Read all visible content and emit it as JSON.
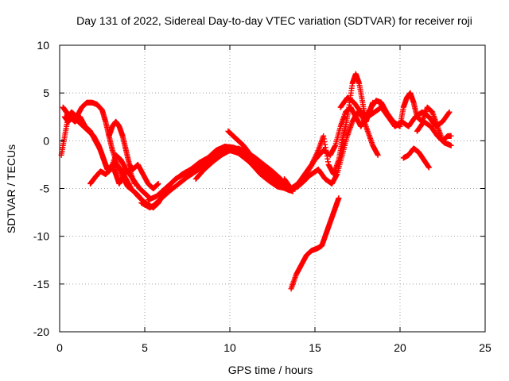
{
  "chart_data": {
    "type": "scatter",
    "title": "Day 131 of 2022, Sidereal Day-to-day VTEC variation (SDTVAR) for receiver roji",
    "xlabel": "GPS time / hours",
    "ylabel": "SDTVAR / TECUs",
    "xlim": [
      0,
      25
    ],
    "ylim": [
      -20,
      10
    ],
    "xticks": [
      0,
      5,
      10,
      15,
      20,
      25
    ],
    "yticks": [
      -20,
      -15,
      -10,
      -5,
      0,
      5,
      10
    ],
    "grid": true,
    "marker": "+",
    "color": "#ff0000",
    "series": [
      {
        "name": "arc1",
        "x": [
          0.1,
          0.3,
          0.5,
          0.7,
          1.0,
          1.3,
          1.6,
          1.9,
          2.2,
          2.5,
          2.7,
          2.9,
          3.1,
          3.4,
          3.7,
          4.0,
          4.5,
          5.0,
          5.5,
          5.8,
          6.1
        ],
        "y": [
          -1.5,
          0.5,
          2.5,
          3.0,
          2.5,
          3.5,
          4.0,
          4.0,
          3.8,
          3.2,
          2.0,
          0.5,
          -1.0,
          -2.5,
          -3.8,
          -4.8,
          -5.5,
          -6.5,
          -7.0,
          -6.5,
          -5.5
        ]
      },
      {
        "name": "arc2",
        "x": [
          0.2,
          0.4,
          0.6,
          0.9,
          1.2,
          1.5,
          1.8,
          2.1,
          2.4,
          2.6,
          2.8,
          3.0,
          3.3,
          3.6,
          3.9,
          4.2,
          4.6,
          5.0,
          5.3
        ],
        "y": [
          3.5,
          3.0,
          2.5,
          2.0,
          2.5,
          1.5,
          1.0,
          0.0,
          -1.0,
          -2.0,
          -3.0,
          -2.8,
          -2.5,
          -3.0,
          -4.0,
          -5.0,
          -5.8,
          -6.5,
          -6.8
        ]
      },
      {
        "name": "arc3",
        "x": [
          0.3,
          0.5,
          0.8,
          1.1,
          1.4,
          1.7,
          2.0,
          2.3,
          2.5,
          2.7,
          2.9,
          3.1,
          3.3,
          3.5,
          3.8,
          4.1,
          4.4
        ],
        "y": [
          2.5,
          2.0,
          2.5,
          2.0,
          1.5,
          1.0,
          0.5,
          -0.5,
          -1.5,
          -2.5,
          -3.2,
          -2.5,
          -3.5,
          -4.5,
          -3.5,
          -3.0,
          -4.5
        ]
      },
      {
        "name": "arc4",
        "x": [
          1.8,
          2.1,
          2.4,
          2.7,
          3.0,
          3.3,
          3.6,
          3.9,
          4.3,
          4.7,
          5.0,
          5.3
        ],
        "y": [
          -4.5,
          -3.8,
          -3.2,
          -3.5,
          -3.0,
          -1.5,
          -2.0,
          -3.0,
          -4.0,
          -5.0,
          -5.5,
          -6.0
        ]
      },
      {
        "name": "arc5",
        "x": [
          2.9,
          3.1,
          3.3,
          3.5,
          3.7,
          3.9,
          4.1,
          4.3,
          4.6,
          4.9,
          5.2,
          5.5,
          5.8
        ],
        "y": [
          0.5,
          1.5,
          2.0,
          1.5,
          0.5,
          -1.0,
          -2.5,
          -3.0,
          -2.5,
          -3.5,
          -4.5,
          -5.0,
          -4.5
        ]
      },
      {
        "name": "arc6",
        "x": [
          4.8,
          5.3,
          5.8,
          6.3,
          6.8,
          7.3,
          7.8,
          8.3,
          8.8,
          9.3,
          9.8,
          10.3,
          10.8,
          11.3,
          11.8,
          12.3,
          12.8,
          13.3,
          13.7
        ],
        "y": [
          -6.5,
          -7.0,
          -6.5,
          -5.0,
          -4.0,
          -3.5,
          -3.0,
          -2.5,
          -2.0,
          -1.2,
          -0.8,
          -0.8,
          -1.5,
          -2.5,
          -3.5,
          -4.2,
          -4.8,
          -5.0,
          -5.3
        ]
      },
      {
        "name": "arc7",
        "x": [
          5.5,
          6.0,
          6.5,
          7.0,
          7.5,
          8.0,
          8.5,
          9.0,
          9.5,
          10.0,
          10.5,
          11.0,
          11.5,
          12.0,
          12.5,
          13.0,
          13.5,
          14.0,
          14.5
        ],
        "y": [
          -6.8,
          -6.0,
          -5.2,
          -4.5,
          -3.8,
          -3.2,
          -2.6,
          -1.8,
          -1.2,
          -1.0,
          -1.3,
          -2.0,
          -2.8,
          -3.5,
          -4.2,
          -4.8,
          -5.2,
          -4.8,
          -4.0
        ]
      },
      {
        "name": "arc8",
        "x": [
          5.2,
          5.7,
          6.2,
          6.7,
          7.2,
          7.7,
          8.2,
          8.7,
          9.2,
          9.7,
          10.2,
          10.7,
          11.2,
          11.7,
          12.2,
          12.7,
          13.2
        ],
        "y": [
          -6.2,
          -5.8,
          -5.0,
          -4.2,
          -3.5,
          -3.0,
          -2.3,
          -1.8,
          -1.0,
          -0.6,
          -0.7,
          -1.0,
          -1.8,
          -2.8,
          -3.7,
          -4.2,
          -4.5
        ]
      },
      {
        "name": "arc9",
        "x": [
          8.0,
          8.5,
          9.0,
          9.5,
          10.0,
          10.5,
          11.0,
          11.5,
          12.0,
          12.5,
          13.0
        ],
        "y": [
          -4.0,
          -3.0,
          -2.2,
          -1.5,
          -1.0,
          -0.8,
          -1.2,
          -1.8,
          -2.5,
          -3.2,
          -4.0
        ]
      },
      {
        "name": "arc10",
        "x": [
          9.9,
          10.2,
          10.5,
          10.8,
          11.1,
          11.4,
          11.7,
          12.0,
          12.3,
          12.6,
          12.9,
          13.2,
          13.5
        ],
        "y": [
          1.0,
          0.5,
          0.0,
          -0.5,
          -1.2,
          -2.0,
          -2.5,
          -3.0,
          -3.5,
          -3.8,
          -4.2,
          -4.5,
          -4.8
        ]
      },
      {
        "name": "arc11",
        "x": [
          13.5,
          14.0,
          14.5,
          15.0,
          15.5,
          15.9,
          16.2,
          16.5,
          16.8,
          17.1,
          17.4,
          17.7,
          18.0,
          18.3,
          18.6,
          18.9,
          19.2
        ],
        "y": [
          -5.2,
          -4.5,
          -3.5,
          -2.0,
          -1.0,
          -1.5,
          -0.5,
          1.5,
          3.0,
          3.5,
          2.5,
          1.5,
          2.5,
          3.5,
          4.2,
          4.0,
          3.0
        ]
      },
      {
        "name": "arc12",
        "x": [
          14.0,
          14.4,
          14.8,
          15.2,
          15.5,
          15.8,
          16.1,
          16.4,
          16.6,
          16.8,
          17.0,
          17.2,
          17.4,
          17.6,
          17.8,
          18.0,
          18.2,
          18.4
        ],
        "y": [
          -4.5,
          -3.5,
          -2.5,
          -1.0,
          0.5,
          -2.5,
          -3.5,
          -2.0,
          0.0,
          1.5,
          3.5,
          6.0,
          7.0,
          6.0,
          4.0,
          2.0,
          3.0,
          4.0
        ]
      },
      {
        "name": "arc13",
        "x": [
          13.2,
          13.6,
          14.0,
          14.4,
          14.8,
          15.2,
          15.6,
          16.0,
          16.3,
          16.6,
          16.9,
          17.2,
          17.5,
          17.8,
          18.1,
          18.4,
          18.7
        ],
        "y": [
          -4.0,
          -5.0,
          -4.5,
          -4.0,
          -3.5,
          -3.0,
          -4.0,
          -4.5,
          -3.5,
          -1.5,
          0.5,
          2.0,
          3.0,
          2.5,
          1.0,
          -0.5,
          -1.5
        ]
      },
      {
        "name": "arc14",
        "x": [
          13.6,
          13.9,
          14.2,
          14.5,
          14.8,
          15.1,
          15.4,
          15.6,
          15.8,
          16.0,
          16.2,
          16.4
        ],
        "y": [
          -15.5,
          -14.0,
          -13.0,
          -12.0,
          -11.5,
          -11.3,
          -11.0,
          -10.0,
          -9.0,
          -8.0,
          -7.0,
          -6.0
        ]
      },
      {
        "name": "arc15",
        "x": [
          16.5,
          16.9,
          17.3,
          17.7,
          18.1,
          18.5,
          18.9,
          19.3,
          19.7,
          20.1,
          20.5,
          20.9,
          21.3,
          21.7,
          22.1,
          22.5,
          22.9
        ],
        "y": [
          3.5,
          4.5,
          4.0,
          3.0,
          2.5,
          3.0,
          3.5,
          2.5,
          1.5,
          2.0,
          1.5,
          2.5,
          3.0,
          2.5,
          1.5,
          2.0,
          3.0
        ]
      },
      {
        "name": "arc16",
        "x": [
          18.8,
          19.2,
          19.6,
          20.0,
          20.2,
          20.4,
          20.6,
          20.8,
          21.0,
          21.3,
          21.6,
          21.9,
          22.2,
          22.5,
          22.8,
          23.0
        ],
        "y": [
          4.0,
          3.0,
          2.0,
          1.5,
          3.5,
          4.5,
          5.0,
          4.0,
          2.5,
          2.0,
          3.5,
          3.0,
          1.5,
          0.0,
          0.5,
          0.5
        ]
      },
      {
        "name": "arc17",
        "x": [
          20.2,
          20.5,
          20.8,
          21.1,
          21.4,
          21.7
        ],
        "y": [
          -1.8,
          -1.5,
          -0.8,
          -1.2,
          -2.0,
          -2.8
        ]
      },
      {
        "name": "arc18",
        "x": [
          21.0,
          21.4,
          21.8,
          22.2,
          22.6,
          23.0
        ],
        "y": [
          1.0,
          2.0,
          1.5,
          0.5,
          -0.2,
          -0.5
        ]
      }
    ]
  }
}
